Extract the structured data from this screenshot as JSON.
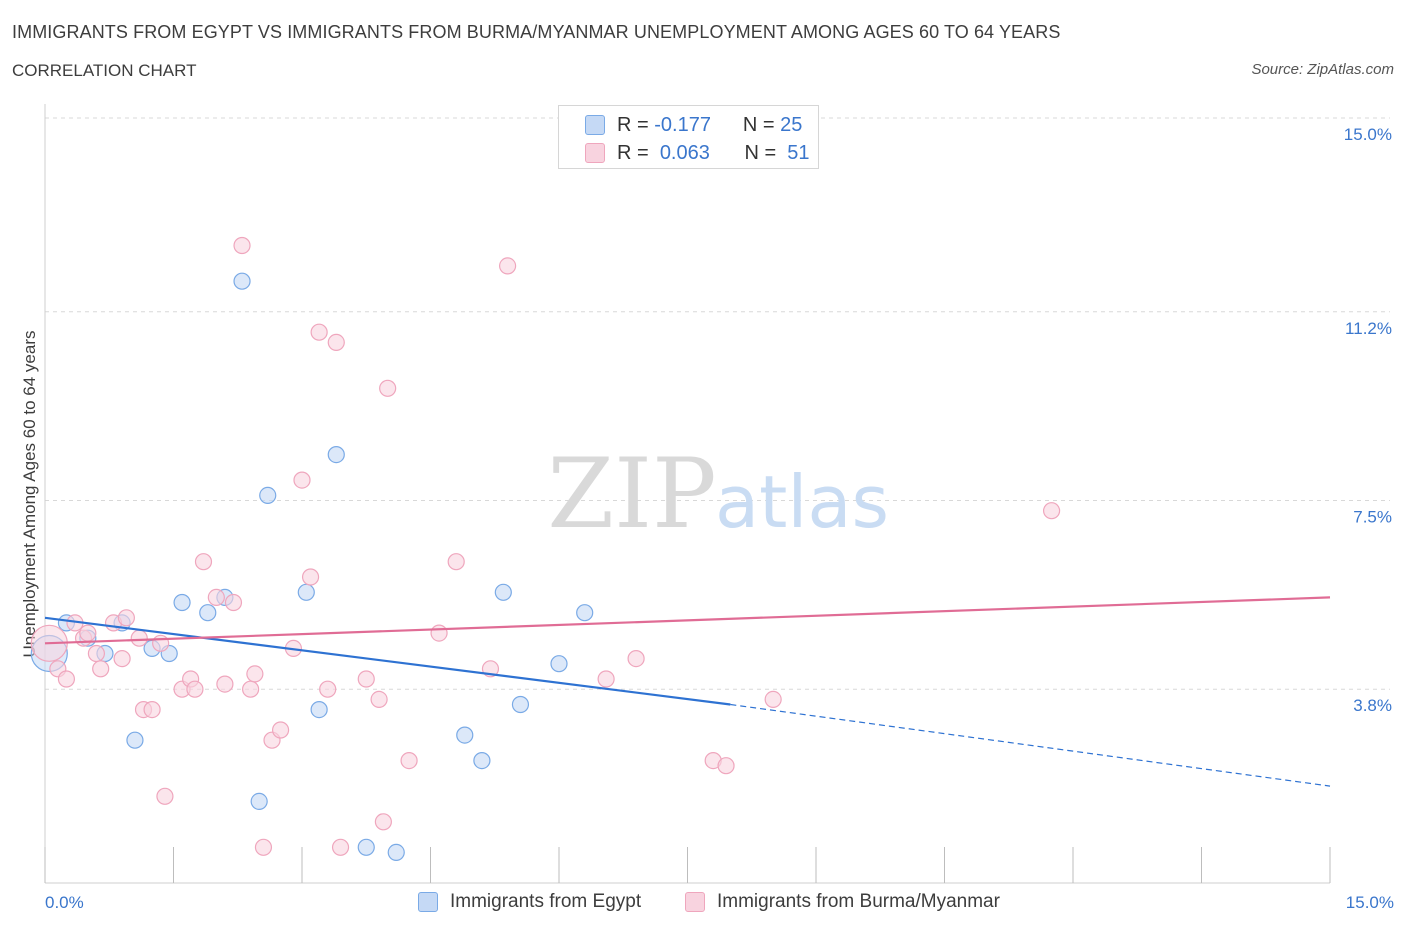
{
  "chart_data": {
    "type": "scatter",
    "title": "IMMIGRANTS FROM EGYPT VS IMMIGRANTS FROM BURMA/MYANMAR UNEMPLOYMENT AMONG AGES 60 TO 64 YEARS",
    "subtitle": "CORRELATION CHART",
    "source": "Source: ZipAtlas.com",
    "xlabel": "",
    "ylabel": "Unemployment Among Ages 60 to 64 years",
    "xlim": [
      0,
      15
    ],
    "ylim": [
      0,
      15
    ],
    "x_tick_labels": [
      "0.0%",
      "15.0%"
    ],
    "y_ticks": [
      {
        "value": 15.0,
        "label": "15.0%"
      },
      {
        "value": 11.2,
        "label": "11.2%"
      },
      {
        "value": 7.5,
        "label": "7.5%"
      },
      {
        "value": 3.8,
        "label": "3.8%"
      }
    ],
    "watermark": {
      "zip": "ZIP",
      "atlas": "atlas"
    },
    "stats_legend": [
      {
        "series": "Immigrants from Egypt",
        "r_label": "R =",
        "r_value": "-0.177",
        "n_label": "N =",
        "n_value": "25"
      },
      {
        "series": "Immigrants from Burma/Myanmar",
        "r_label": "R =",
        "r_value": "0.063",
        "n_label": "N =",
        "n_value": "51"
      }
    ],
    "series": [
      {
        "name": "Immigrants from Egypt",
        "color": "#7aaae6",
        "fill": "#c5d9f5",
        "line_color": "#2e72d2",
        "trend": {
          "x_start": 0.0,
          "y_start": 5.2,
          "x_solid_end": 8.0,
          "y_solid_end": 3.5,
          "x_end": 15.0,
          "y_end": 1.9
        },
        "points": [
          {
            "x": 0.05,
            "y": 4.5,
            "big": true
          },
          {
            "x": 0.25,
            "y": 5.1
          },
          {
            "x": 0.5,
            "y": 4.8
          },
          {
            "x": 0.7,
            "y": 4.5
          },
          {
            "x": 0.9,
            "y": 5.1
          },
          {
            "x": 1.05,
            "y": 2.8
          },
          {
            "x": 1.25,
            "y": 4.6
          },
          {
            "x": 1.45,
            "y": 4.5
          },
          {
            "x": 1.6,
            "y": 5.5
          },
          {
            "x": 1.9,
            "y": 5.3
          },
          {
            "x": 2.1,
            "y": 5.6
          },
          {
            "x": 2.3,
            "y": 11.8
          },
          {
            "x": 2.6,
            "y": 7.6
          },
          {
            "x": 2.5,
            "y": 1.6
          },
          {
            "x": 3.05,
            "y": 5.7
          },
          {
            "x": 3.2,
            "y": 3.4
          },
          {
            "x": 3.4,
            "y": 8.4
          },
          {
            "x": 3.75,
            "y": 0.7
          },
          {
            "x": 4.1,
            "y": 0.6
          },
          {
            "x": 4.9,
            "y": 2.9
          },
          {
            "x": 5.1,
            "y": 2.4
          },
          {
            "x": 5.35,
            "y": 5.7
          },
          {
            "x": 5.55,
            "y": 3.5
          },
          {
            "x": 6.0,
            "y": 4.3
          },
          {
            "x": 6.3,
            "y": 5.3
          }
        ]
      },
      {
        "name": "Immigrants from Burma/Myanmar",
        "color": "#efa6bd",
        "fill": "#f8d3df",
        "line_color": "#e06c95",
        "trend": {
          "x_start": 0.0,
          "y_start": 4.7,
          "x_end": 15.0,
          "y_end": 5.6
        },
        "points": [
          {
            "x": 0.05,
            "y": 4.7,
            "big": true
          },
          {
            "x": 0.15,
            "y": 4.2
          },
          {
            "x": 0.25,
            "y": 4.0
          },
          {
            "x": 0.35,
            "y": 5.1
          },
          {
            "x": 0.45,
            "y": 4.8
          },
          {
            "x": 0.6,
            "y": 4.5
          },
          {
            "x": 0.65,
            "y": 4.2
          },
          {
            "x": 0.8,
            "y": 5.1
          },
          {
            "x": 0.9,
            "y": 4.4
          },
          {
            "x": 0.95,
            "y": 5.2
          },
          {
            "x": 1.1,
            "y": 4.8
          },
          {
            "x": 1.15,
            "y": 3.4
          },
          {
            "x": 1.25,
            "y": 3.4
          },
          {
            "x": 1.35,
            "y": 4.7
          },
          {
            "x": 1.4,
            "y": 1.7
          },
          {
            "x": 1.6,
            "y": 3.8
          },
          {
            "x": 1.7,
            "y": 4.0
          },
          {
            "x": 1.75,
            "y": 3.8
          },
          {
            "x": 1.85,
            "y": 6.3
          },
          {
            "x": 2.0,
            "y": 5.6
          },
          {
            "x": 2.1,
            "y": 3.9
          },
          {
            "x": 2.2,
            "y": 5.5
          },
          {
            "x": 2.3,
            "y": 12.5
          },
          {
            "x": 2.4,
            "y": 3.8
          },
          {
            "x": 2.45,
            "y": 4.1
          },
          {
            "x": 2.55,
            "y": 0.7
          },
          {
            "x": 2.65,
            "y": 2.8
          },
          {
            "x": 2.75,
            "y": 3.0
          },
          {
            "x": 2.9,
            "y": 4.6
          },
          {
            "x": 3.0,
            "y": 7.9
          },
          {
            "x": 3.1,
            "y": 6.0
          },
          {
            "x": 3.2,
            "y": 10.8
          },
          {
            "x": 3.3,
            "y": 3.8
          },
          {
            "x": 3.4,
            "y": 10.6
          },
          {
            "x": 3.45,
            "y": 0.7
          },
          {
            "x": 3.75,
            "y": 4.0
          },
          {
            "x": 3.9,
            "y": 3.6
          },
          {
            "x": 3.95,
            "y": 1.2
          },
          {
            "x": 4.0,
            "y": 9.7
          },
          {
            "x": 4.25,
            "y": 2.4
          },
          {
            "x": 4.6,
            "y": 4.9
          },
          {
            "x": 4.8,
            "y": 6.3
          },
          {
            "x": 5.2,
            "y": 4.2
          },
          {
            "x": 5.4,
            "y": 12.1
          },
          {
            "x": 6.55,
            "y": 4.0
          },
          {
            "x": 6.9,
            "y": 4.4
          },
          {
            "x": 7.8,
            "y": 2.4
          },
          {
            "x": 7.95,
            "y": 2.3
          },
          {
            "x": 8.5,
            "y": 3.6
          },
          {
            "x": 11.75,
            "y": 7.3
          },
          {
            "x": 0.5,
            "y": 4.9
          }
        ]
      }
    ]
  }
}
